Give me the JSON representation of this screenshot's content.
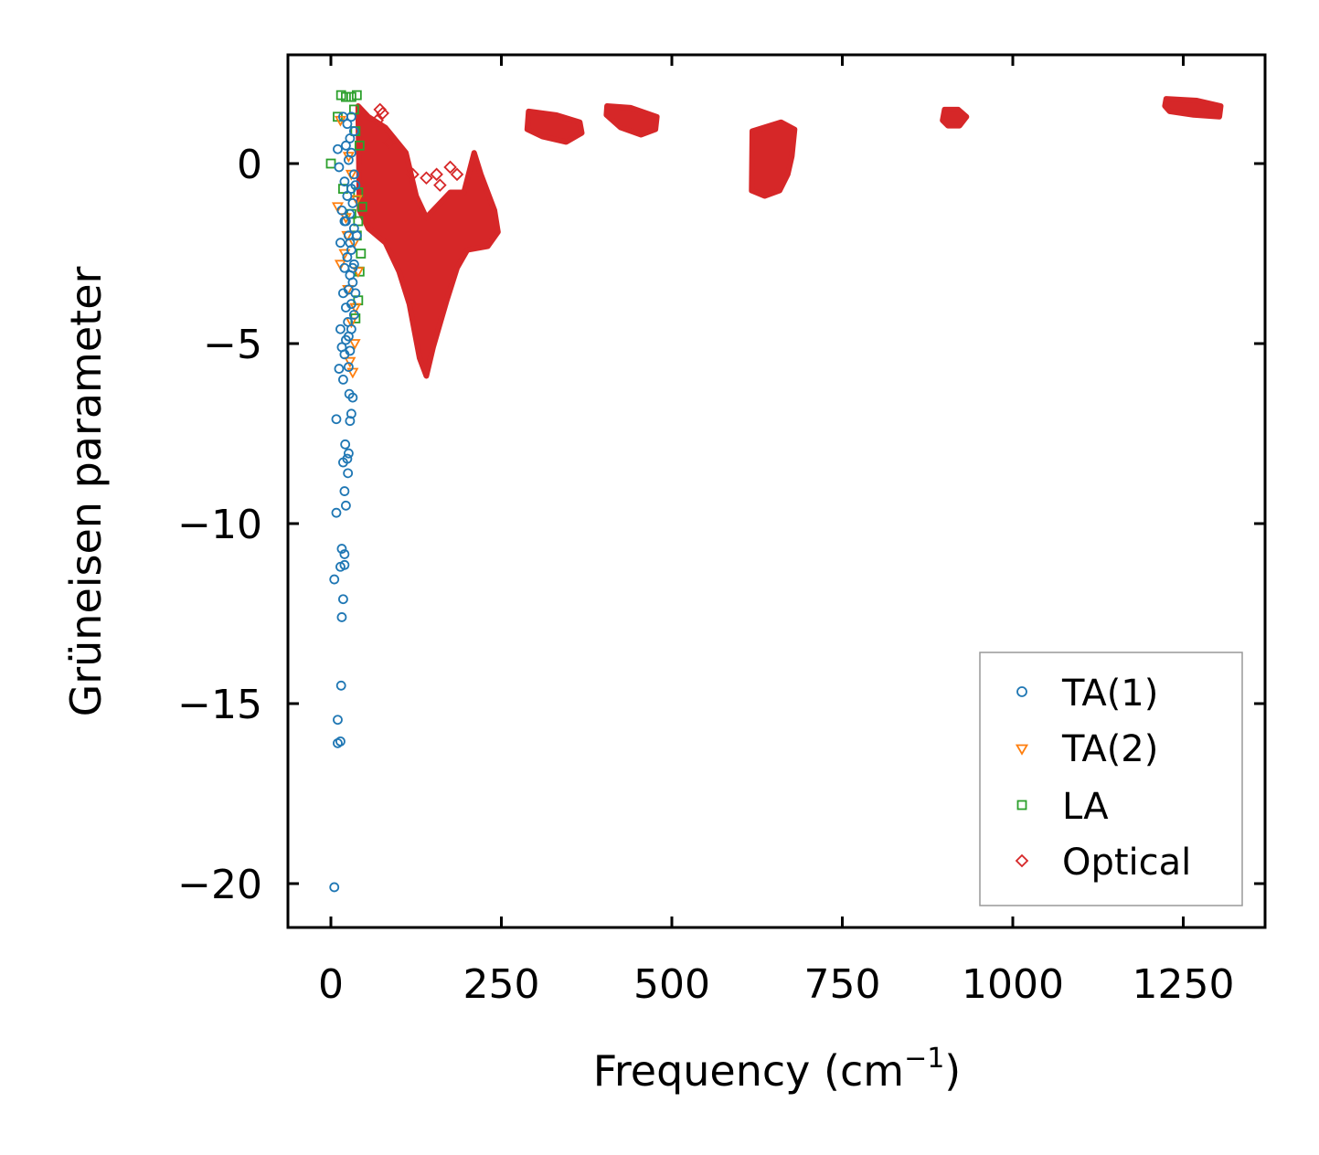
{
  "chart_data": {
    "type": "scatter",
    "xlabel": "Frequency (cm",
    "xlabel_sup": "−1",
    "xlabel_end": ")",
    "ylabel": "Grüneisen parameter",
    "xlim": [
      -65,
      1370
    ],
    "ylim": [
      -21.2,
      3.0
    ],
    "xticks": [
      0,
      250,
      500,
      750,
      1000,
      1250
    ],
    "xtick_labels": [
      "0",
      "250",
      "500",
      "750",
      "1000",
      "1250"
    ],
    "yticks": [
      0,
      -5,
      -10,
      -15,
      -20
    ],
    "ytick_labels": [
      "0",
      "−5",
      "−10",
      "−15",
      "−20"
    ],
    "legend_position": "lower-right",
    "series": [
      {
        "name": "TA(1)",
        "marker": "circle",
        "color": "#1f77b4",
        "points": [
          [
            5,
            -20.1
          ],
          [
            10,
            -16.1
          ],
          [
            14,
            -16.05
          ],
          [
            10,
            -15.45
          ],
          [
            15,
            -14.5
          ],
          [
            16,
            -12.6
          ],
          [
            18,
            -12.1
          ],
          [
            5,
            -11.55
          ],
          [
            14,
            -11.2
          ],
          [
            20,
            -11.15
          ],
          [
            20,
            -10.85
          ],
          [
            16,
            -10.7
          ],
          [
            8,
            -9.7
          ],
          [
            22,
            -9.5
          ],
          [
            20,
            -9.1
          ],
          [
            25,
            -8.6
          ],
          [
            18,
            -8.3
          ],
          [
            24,
            -8.2
          ],
          [
            26,
            -8.05
          ],
          [
            21,
            -7.8
          ],
          [
            8,
            -7.1
          ],
          [
            28,
            -7.15
          ],
          [
            30,
            -6.95
          ],
          [
            32,
            -6.5
          ],
          [
            27,
            -6.4
          ],
          [
            18,
            -6.0
          ],
          [
            12,
            -5.7
          ],
          [
            26,
            -5.65
          ],
          [
            20,
            -5.3
          ],
          [
            28,
            -5.2
          ],
          [
            16,
            -5.1
          ],
          [
            22,
            -4.9
          ],
          [
            14,
            -4.6
          ],
          [
            30,
            -4.6
          ],
          [
            25,
            -4.4
          ],
          [
            34,
            -4.2
          ],
          [
            22,
            -4.0
          ],
          [
            30,
            -3.9
          ],
          [
            18,
            -3.6
          ],
          [
            26,
            -3.5
          ],
          [
            32,
            -3.3
          ],
          [
            28,
            -3.1
          ],
          [
            20,
            -2.9
          ],
          [
            34,
            -2.8
          ],
          [
            24,
            -2.6
          ],
          [
            30,
            -2.4
          ],
          [
            14,
            -2.2
          ],
          [
            26,
            -2.0
          ],
          [
            34,
            -1.8
          ],
          [
            20,
            -1.6
          ],
          [
            28,
            -1.4
          ],
          [
            16,
            -1.3
          ],
          [
            32,
            -1.1
          ],
          [
            24,
            -0.9
          ],
          [
            30,
            -0.7
          ],
          [
            20,
            -0.5
          ],
          [
            34,
            -0.3
          ],
          [
            12,
            -0.1
          ],
          [
            26,
            0.1
          ],
          [
            30,
            0.3
          ],
          [
            22,
            0.5
          ],
          [
            10,
            0.4
          ],
          [
            28,
            0.7
          ],
          [
            34,
            0.9
          ],
          [
            24,
            1.1
          ],
          [
            18,
            1.3
          ],
          [
            30,
            1.3
          ],
          [
            22,
            -1.6
          ],
          [
            28,
            -2.2
          ],
          [
            32,
            -2.9
          ],
          [
            36,
            -3.6
          ],
          [
            26,
            -4.8
          ],
          [
            38,
            -2.0
          ],
          [
            36,
            -0.6
          ]
        ]
      },
      {
        "name": "TA(2)",
        "marker": "triangle-down",
        "color": "#ff7f0e",
        "points": [
          [
            10,
            -1.2
          ],
          [
            14,
            -2.8
          ],
          [
            20,
            -2.5
          ],
          [
            25,
            -3.5
          ],
          [
            30,
            -4.4
          ],
          [
            35,
            -5.0
          ],
          [
            28,
            -5.5
          ],
          [
            32,
            -5.8
          ],
          [
            22,
            -1.5
          ],
          [
            34,
            -2.2
          ],
          [
            38,
            -1.0
          ],
          [
            30,
            -0.3
          ],
          [
            26,
            0.2
          ],
          [
            14,
            1.2
          ],
          [
            36,
            -4.0
          ],
          [
            24,
            -2.0
          ],
          [
            40,
            -3.0
          ]
        ]
      },
      {
        "name": "LA",
        "marker": "square",
        "color": "#2ca02c",
        "points": [
          [
            15,
            1.9
          ],
          [
            22,
            1.85
          ],
          [
            30,
            1.85
          ],
          [
            38,
            1.9
          ],
          [
            10,
            1.3
          ],
          [
            34,
            1.5
          ],
          [
            0,
            0.0
          ],
          [
            18,
            -0.7
          ],
          [
            40,
            -0.8
          ],
          [
            38,
            -2.0
          ],
          [
            42,
            -3.0
          ],
          [
            40,
            -3.8
          ],
          [
            36,
            -4.3
          ],
          [
            42,
            0.5
          ],
          [
            30,
            -1.4
          ],
          [
            44,
            -2.5
          ],
          [
            36,
            0.9
          ],
          [
            40,
            -1.6
          ],
          [
            46,
            -1.2
          ]
        ]
      },
      {
        "name": "Optical",
        "marker": "diamond",
        "color": "#d62728",
        "points": [
          [
            72,
            1.5
          ],
          [
            76,
            1.4
          ],
          [
            68,
            1.2
          ],
          [
            85,
            0.6
          ],
          [
            120,
            -0.3
          ],
          [
            140,
            -0.4
          ],
          [
            160,
            -0.6
          ],
          [
            175,
            -0.1
          ],
          [
            185,
            -0.3
          ],
          [
            155,
            -0.3
          ]
        ],
        "regions": [
          {
            "polygon": [
              [
                40,
                1.6
              ],
              [
                55,
                1.3
              ],
              [
                80,
                1.0
              ],
              [
                110,
                0.3
              ],
              [
                125,
                -0.9
              ],
              [
                140,
                -1.5
              ],
              [
                175,
                -0.8
              ],
              [
                195,
                -0.8
              ],
              [
                210,
                0.3
              ],
              [
                220,
                -0.3
              ],
              [
                240,
                -1.3
              ],
              [
                245,
                -1.9
              ],
              [
                230,
                -2.3
              ],
              [
                200,
                -2.4
              ],
              [
                185,
                -2.9
              ],
              [
                170,
                -3.8
              ],
              [
                150,
                -5.1
              ],
              [
                140,
                -5.9
              ],
              [
                130,
                -5.4
              ],
              [
                115,
                -3.9
              ],
              [
                100,
                -3.0
              ],
              [
                80,
                -2.2
              ],
              [
                55,
                -1.8
              ],
              [
                42,
                -1.3
              ]
            ]
          },
          {
            "polygon": [
              [
                290,
                1.45
              ],
              [
                330,
                1.35
              ],
              [
                365,
                1.15
              ],
              [
                368,
                0.85
              ],
              [
                345,
                0.6
              ],
              [
                310,
                0.75
              ],
              [
                288,
                0.95
              ]
            ]
          },
          {
            "polygon": [
              [
                405,
                1.6
              ],
              [
                440,
                1.55
              ],
              [
                478,
                1.3
              ],
              [
                476,
                0.95
              ],
              [
                455,
                0.8
              ],
              [
                425,
                1.0
              ],
              [
                404,
                1.35
              ]
            ]
          },
          {
            "polygon": [
              [
                618,
                0.9
              ],
              [
                660,
                1.15
              ],
              [
                680,
                0.95
              ],
              [
                676,
                0.2
              ],
              [
                670,
                -0.3
              ],
              [
                658,
                -0.75
              ],
              [
                636,
                -0.9
              ],
              [
                617,
                -0.75
              ]
            ]
          },
          {
            "polygon": [
              [
                900,
                1.5
              ],
              [
                920,
                1.5
              ],
              [
                932,
                1.3
              ],
              [
                922,
                1.05
              ],
              [
                905,
                1.05
              ],
              [
                897,
                1.2
              ]
            ]
          },
          {
            "polygon": [
              [
                1225,
                1.8
              ],
              [
                1270,
                1.75
              ],
              [
                1305,
                1.6
              ],
              [
                1303,
                1.3
              ],
              [
                1265,
                1.35
              ],
              [
                1230,
                1.45
              ],
              [
                1223,
                1.6
              ]
            ]
          }
        ]
      }
    ]
  }
}
